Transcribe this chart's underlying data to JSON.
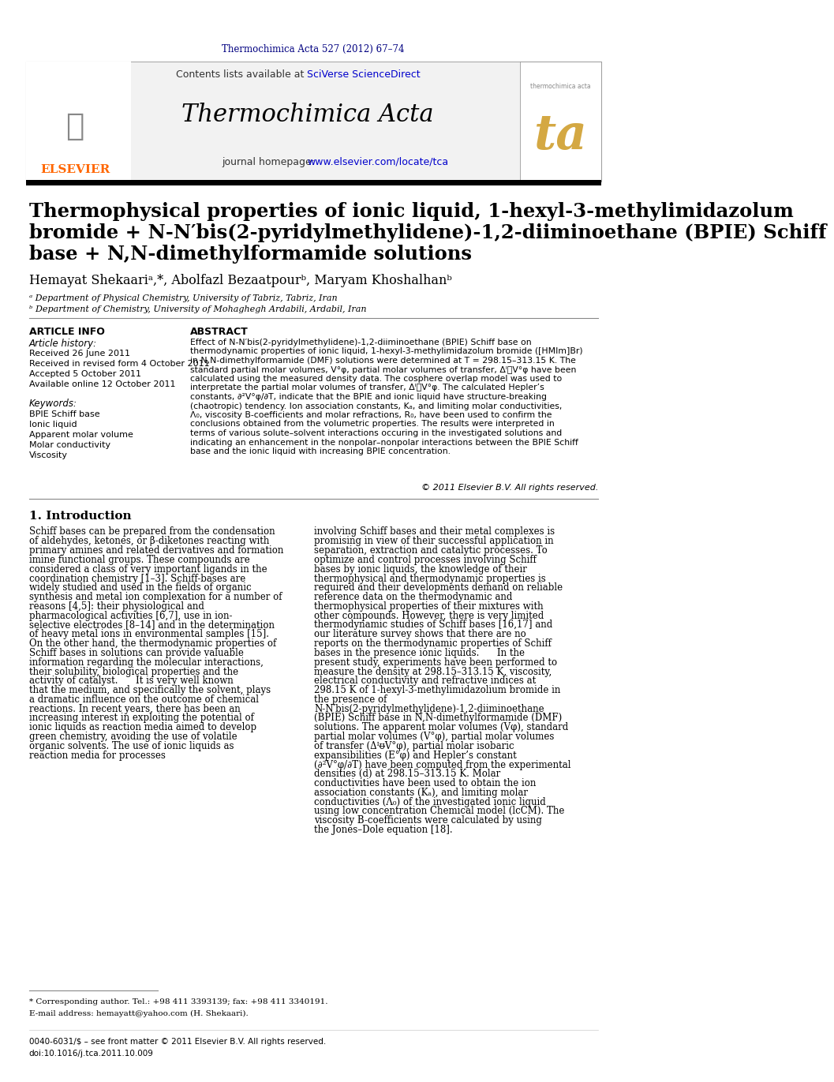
{
  "top_citation": "Thermochimica Acta 527 (2012) 67–74",
  "top_citation_color": "#000080",
  "journal_name": "Thermochimica Acta",
  "contents_line": "Contents lists available at SciVerse ScienceDirect",
  "contents_sciverse": "SciVerse ScienceDirect",
  "journal_homepage": "journal homepage: www.elsevier.com/locate/tca",
  "homepage_url": "www.elsevier.com/locate/tca",
  "title_line1": "Thermophysical properties of ionic liquid, 1-hexyl-3-methylimidazolum",
  "title_line2": "bromide + N-N′bis(2-pyridylmethylidene)-1,2-diiminoethane (BPIE) Schiff",
  "title_line3": "base + N,N-dimethylformamide solutions",
  "authors": "Hemayat Shekaariᵃ,*, Abolfazl Bezaatpourᵇ, Maryam Khoshalhanᵇ",
  "affil_a": "ᵃ Department of Physical Chemistry, University of Tabriz, Tabriz, Iran",
  "affil_b": "ᵇ Department of Chemistry, University of Mohaghegh Ardabili, Ardabil, Iran",
  "article_info_title": "ARTICLE INFO",
  "article_history_title": "Article history:",
  "received_line": "Received 26 June 2011",
  "received_revised": "Received in revised form 4 October 2011",
  "accepted": "Accepted 5 October 2011",
  "available": "Available online 12 October 2011",
  "keywords_title": "Keywords:",
  "keyword1": "BPIE Schiff base",
  "keyword2": "Ionic liquid",
  "keyword3": "Apparent molar volume",
  "keyword4": "Molar conductivity",
  "keyword5": "Viscosity",
  "abstract_title": "ABSTRACT",
  "abstract_text": "Effect of N-N′bis(2-pyridylmethylidene)-1,2-diiminoethane (BPIE) Schiff base on thermodynamic properties of ionic liquid, 1-hexyl-3-methylimidazolum bromide ([HMIm]Br) in N,N-dimethylformamide (DMF) solutions were determined at T = 298.15–313.15 K. The standard partial molar volumes, V°φ, partial molar volumes of transfer, ΔᴵᵿV°φ have been calculated using the measured density data. The cosphere overlap model was used to interpretate the partial molar volumes of transfer, ΔᴵᵿV°φ. The calculated Hepler’s constants, ∂²V°φ/∂T, indicate that the BPIE and ionic liquid have structure-breaking (chaotropic) tendency. Ion association constants, Kₐ, and limiting molar conductivities, Λ₀, viscosity B-coefficients and molar refractions, R₀, have been used to confirm the conclusions obtained from the volumetric properties. The results were interpreted in terms of various solute–solvent interactions occuring in the investigated solutions and indicating an enhancement in the nonpolar–nonpolar interactions between the BPIE Schiff base and the ionic liquid with increasing BPIE concentration.",
  "copyright": "© 2011 Elsevier B.V. All rights reserved.",
  "intro_title": "1. Introduction",
  "intro_col1": "Schiff bases can be prepared from the condensation of aldehydes, ketones, or β-diketones reacting with primary amines and related derivatives and formation imine functional groups. These compounds are considered a class of very important ligands in the coordination chemistry [1–3]. Schiff-bases are widely studied and used in the fields of organic synthesis and metal ion complexation for a number of reasons [4,5]: their physiological and pharmacological activities [6,7], use in ion-selective electrodes [8–14] and in the determination of heavy metal ions in environmental samples [15]. On the other hand, the thermodynamic properties of Schiff bases in solutions can provide valuable information regarding the molecular interactions, their solubility, biological properties and the activity of catalyst.\n\n    It is very well known that the medium, and specifically the solvent, plays a dramatic influence on the outcome of chemical reactions. In recent years, there has been an increasing interest in exploiting the potential of ionic liquids as reaction media aimed to develop green chemistry, avoiding the use of volatile organic solvents. The use of ionic liquids as reaction media for processes",
  "intro_col2": "involving Schiff bases and their metal complexes is promising in view of their successful application in separation, extraction and catalytic processes. To optimize and control processes involving Schiff bases by ionic liquids, the knowledge of their thermophysical and thermodynamic properties is required and their developments demand on reliable reference data on the thermodynamic and thermophysical properties of their mixtures with other compounds. However, there is very limited thermodynamic studies of Schiff bases [16,17] and our literature survey shows that there are no reports on the thermodynamic properties of Schiff bases in the presence ionic liquids.\n\n    In the present study, experiments have been performed to measure the density at 298.15–313.15 K, viscosity, electrical conductivity and refractive indices at 298.15 K of 1-hexyl-3-methylimidazolium bromide in the presence of N-N′bis(2-pyridylmethylidene)-1,2-diiminoethane (BPIE) Schiff base in N,N-dimethylformamide (DMF) solutions. The apparent molar volumes (Vφ), standard partial molar volumes (V°φ), partial molar volumes of transfer (ΔᴵᵿV°φ), partial molar isobaric expansibilities (E°φ) and Hepler’s constant (∂²V°φ/∂T) have been computed from the experimental densities (d) at 298.15–313.15 K. Molar conductivities have been used to obtain the ion association constants (Kₐ), and limiting molar conductivities (Λ₀) of the investigated ionic liquid using low concentration Chemical model (lcCM). The viscosity B-coefficients were calculated by using the Jones–Dole equation [18].",
  "footnote_star": "* Corresponding author. Tel.: +98 411 3393139; fax: +98 411 3340191.",
  "footnote_email": "E-mail address: hemayatt@yahoo.com (H. Shekaari).",
  "footer1": "0040-6031/$ – see front matter © 2011 Elsevier B.V. All rights reserved.",
  "footer2": "doi:10.1016/j.tca.2011.10.009",
  "bg_color": "#ffffff",
  "header_bg": "#f0f0f0",
  "link_color": "#0000cc",
  "elsevier_color": "#ff6600",
  "title_color": "#000000",
  "text_color": "#000000",
  "section_color": "#000000"
}
